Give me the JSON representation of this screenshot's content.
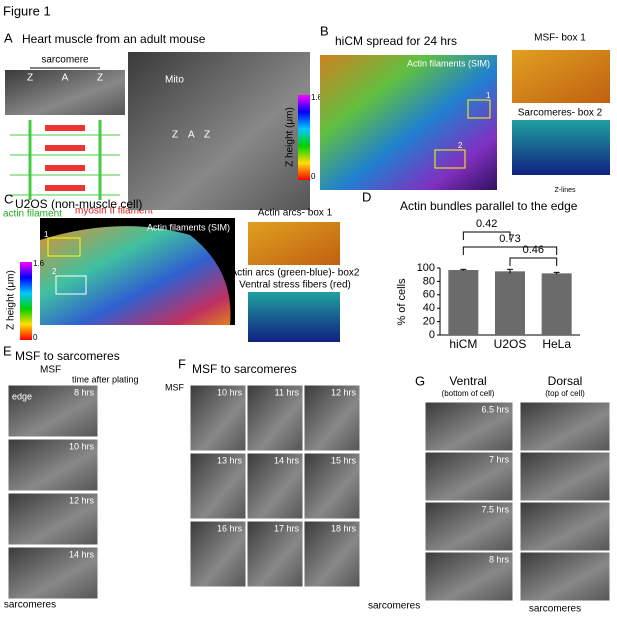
{
  "figure_label": "Figure 1",
  "panel_a": {
    "label": "A",
    "title": "Heart muscle from an adult mouse",
    "sarcomere": "sarcomere",
    "z_left": "Z",
    "a_left": "A",
    "z_right": "Z",
    "mito": "Mito",
    "z2_left": "Z",
    "a2": "A",
    "z2_right": "Z",
    "actin": "actin filament",
    "myosin": "myosin II filament"
  },
  "panel_b": {
    "label": "B",
    "title": "hiCM spread for 24 hrs",
    "image_label": "Actin filaments (SIM)",
    "box1": "1",
    "box2": "2",
    "inset1": "MSF- box 1",
    "inset2": "Sarcomeres- box 2",
    "zlines": "Z-lines",
    "colorbar_max": "1.6",
    "colorbar_min": "0",
    "colorbar_label": "Z height (μm)"
  },
  "panel_c": {
    "label": "C",
    "title": "U2OS (non-muscle cell)",
    "image_label": "Actin filaments (SIM)",
    "box1": "1",
    "box2": "2",
    "inset1": "Actin arcs- box 1",
    "inset2_line1": "Actin arcs (green-blue)- box2",
    "inset2_line2": "Ventral stress fibers (red)",
    "colorbar_max": "1.6",
    "colorbar_min": "0",
    "colorbar_label": "Z height (μm)"
  },
  "panel_d_label": "D",
  "chart_data": {
    "type": "bar",
    "title": "Actin bundles parallel to the edge",
    "ylabel": "% of cells",
    "categories": [
      "hiCM",
      "U2OS",
      "HeLa"
    ],
    "values": [
      97,
      95,
      92
    ],
    "errors": [
      1,
      3,
      1.5
    ],
    "color": "#6b6b6b",
    "ylim": [
      0,
      100
    ],
    "yticks": [
      0,
      20,
      40,
      60,
      80,
      100
    ],
    "annotations": [
      "0.42",
      "0.73",
      "0.46"
    ]
  },
  "panel_e": {
    "label": "E",
    "title": "MSF to sarcomeres",
    "msf": "MSF",
    "time_note": "time after plating",
    "edge": "edge",
    "times": [
      "8 hrs",
      "10 hrs",
      "12 hrs",
      "14 hrs"
    ],
    "sarcomeres": "sarcomeres"
  },
  "panel_f": {
    "label": "F",
    "title": "MSF to sarcomeres",
    "msf": "MSF",
    "times": [
      "10 hrs",
      "11 hrs",
      "12 hrs",
      "13 hrs",
      "14 hrs",
      "15 hrs",
      "16 hrs",
      "17 hrs",
      "18 hrs"
    ],
    "sarcomeres": "sarcomeres"
  },
  "panel_g": {
    "label": "G",
    "ventral": "Ventral",
    "ventral_note": "(bottom of cell)",
    "dorsal": "Dorsal",
    "dorsal_note": "(top of cell)",
    "times": [
      "6.5 hrs",
      "7 hrs",
      "7.5 hrs",
      "8 hrs"
    ],
    "sarcomeres": "sarcomeres"
  }
}
